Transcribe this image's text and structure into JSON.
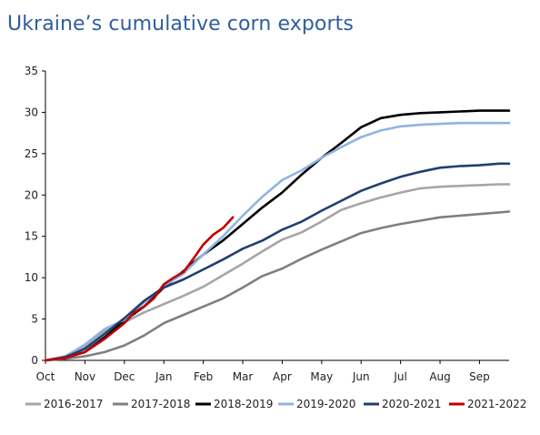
{
  "chart_data": {
    "type": "line",
    "title": "Ukraine’s cumulative corn exports",
    "xlabel": "",
    "ylabel": "",
    "categories": [
      "Oct",
      "Nov",
      "Dec",
      "Jan",
      "Feb",
      "Mar",
      "Apr",
      "May",
      "Jun",
      "Jul",
      "Aug",
      "Sep"
    ],
    "x_range": [
      0,
      11.75
    ],
    "ylim": [
      0,
      35
    ],
    "yticks": [
      0,
      5,
      10,
      15,
      20,
      25,
      30,
      35
    ],
    "grid": false,
    "legend": "bottom",
    "series": [
      {
        "name": "2016-2017",
        "color": "#a6a6a6",
        "x": [
          0,
          0.5,
          1,
          1.5,
          2,
          2.5,
          3,
          3.5,
          4,
          4.5,
          5,
          5.5,
          6,
          6.5,
          7,
          7.5,
          8,
          8.5,
          9,
          9.5,
          10,
          10.5,
          11,
          11.5,
          11.75
        ],
        "y": [
          0,
          0.5,
          1.7,
          3.5,
          4.6,
          5.8,
          6.8,
          7.8,
          8.9,
          10.3,
          11.7,
          13.2,
          14.6,
          15.5,
          16.8,
          18.2,
          19.0,
          19.7,
          20.3,
          20.8,
          21.0,
          21.1,
          21.2,
          21.3,
          21.3
        ]
      },
      {
        "name": "2017-2018",
        "color": "#7f7f7f",
        "x": [
          0,
          0.5,
          1,
          1.5,
          2,
          2.5,
          3,
          3.5,
          4,
          4.5,
          5,
          5.5,
          6,
          6.5,
          7,
          7.5,
          8,
          8.5,
          9,
          9.5,
          10,
          10.5,
          11,
          11.5,
          11.75
        ],
        "y": [
          0,
          0.2,
          0.5,
          1.0,
          1.8,
          3.0,
          4.5,
          5.5,
          6.5,
          7.5,
          8.8,
          10.2,
          11.1,
          12.3,
          13.4,
          14.4,
          15.4,
          16.0,
          16.5,
          16.9,
          17.3,
          17.5,
          17.7,
          17.9,
          18.0
        ]
      },
      {
        "name": "2018-2019",
        "color": "#000000",
        "x": [
          0,
          0.5,
          1,
          1.5,
          2,
          2.5,
          3,
          3.5,
          4,
          4.5,
          5,
          5.5,
          6,
          6.5,
          7,
          7.5,
          8,
          8.5,
          9,
          9.5,
          10,
          10.5,
          11,
          11.5,
          11.75
        ],
        "y": [
          0,
          0.3,
          1.0,
          2.8,
          4.8,
          6.5,
          8.8,
          10.8,
          12.8,
          14.5,
          16.5,
          18.5,
          20.3,
          22.5,
          24.5,
          26.3,
          28.2,
          29.3,
          29.7,
          29.9,
          30.0,
          30.1,
          30.2,
          30.2,
          30.2
        ]
      },
      {
        "name": "2019-2020",
        "color": "#8fb4e3",
        "x": [
          0,
          0.5,
          1,
          1.5,
          2,
          2.5,
          3,
          3.5,
          4,
          4.5,
          5,
          5.5,
          6,
          6.5,
          7,
          7.5,
          8,
          8.5,
          9,
          9.5,
          10,
          10.5,
          11,
          11.5,
          11.75
        ],
        "y": [
          0,
          0.5,
          1.9,
          3.8,
          4.9,
          7.0,
          9.0,
          10.5,
          12.8,
          15.0,
          17.5,
          19.8,
          21.8,
          23.0,
          24.5,
          25.8,
          27.0,
          27.8,
          28.3,
          28.5,
          28.6,
          28.7,
          28.7,
          28.7,
          28.7
        ]
      },
      {
        "name": "2020-2021",
        "color": "#1f3f6e",
        "x": [
          0,
          0.5,
          1,
          1.5,
          2,
          2.5,
          3,
          3.5,
          4,
          4.5,
          5,
          5.5,
          6,
          6.5,
          7,
          7.5,
          8,
          8.5,
          9,
          9.5,
          10,
          10.5,
          11,
          11.5,
          11.75
        ],
        "y": [
          0,
          0.4,
          1.4,
          3.2,
          5.1,
          7.2,
          8.8,
          9.8,
          11.0,
          12.2,
          13.5,
          14.5,
          15.8,
          16.8,
          18.1,
          19.3,
          20.5,
          21.4,
          22.2,
          22.8,
          23.3,
          23.5,
          23.6,
          23.8,
          23.8
        ]
      },
      {
        "name": "2021-2022",
        "color": "#c00000",
        "x": [
          0,
          0.5,
          1,
          1.5,
          2,
          2.25,
          2.5,
          2.75,
          3,
          3.25,
          3.5,
          3.75,
          4,
          4.25,
          4.5,
          4.75
        ],
        "y": [
          0,
          0.3,
          1.0,
          2.6,
          4.5,
          5.8,
          6.5,
          7.5,
          9.2,
          10.0,
          10.7,
          12.3,
          14.0,
          15.2,
          16.0,
          17.3
        ]
      }
    ]
  }
}
